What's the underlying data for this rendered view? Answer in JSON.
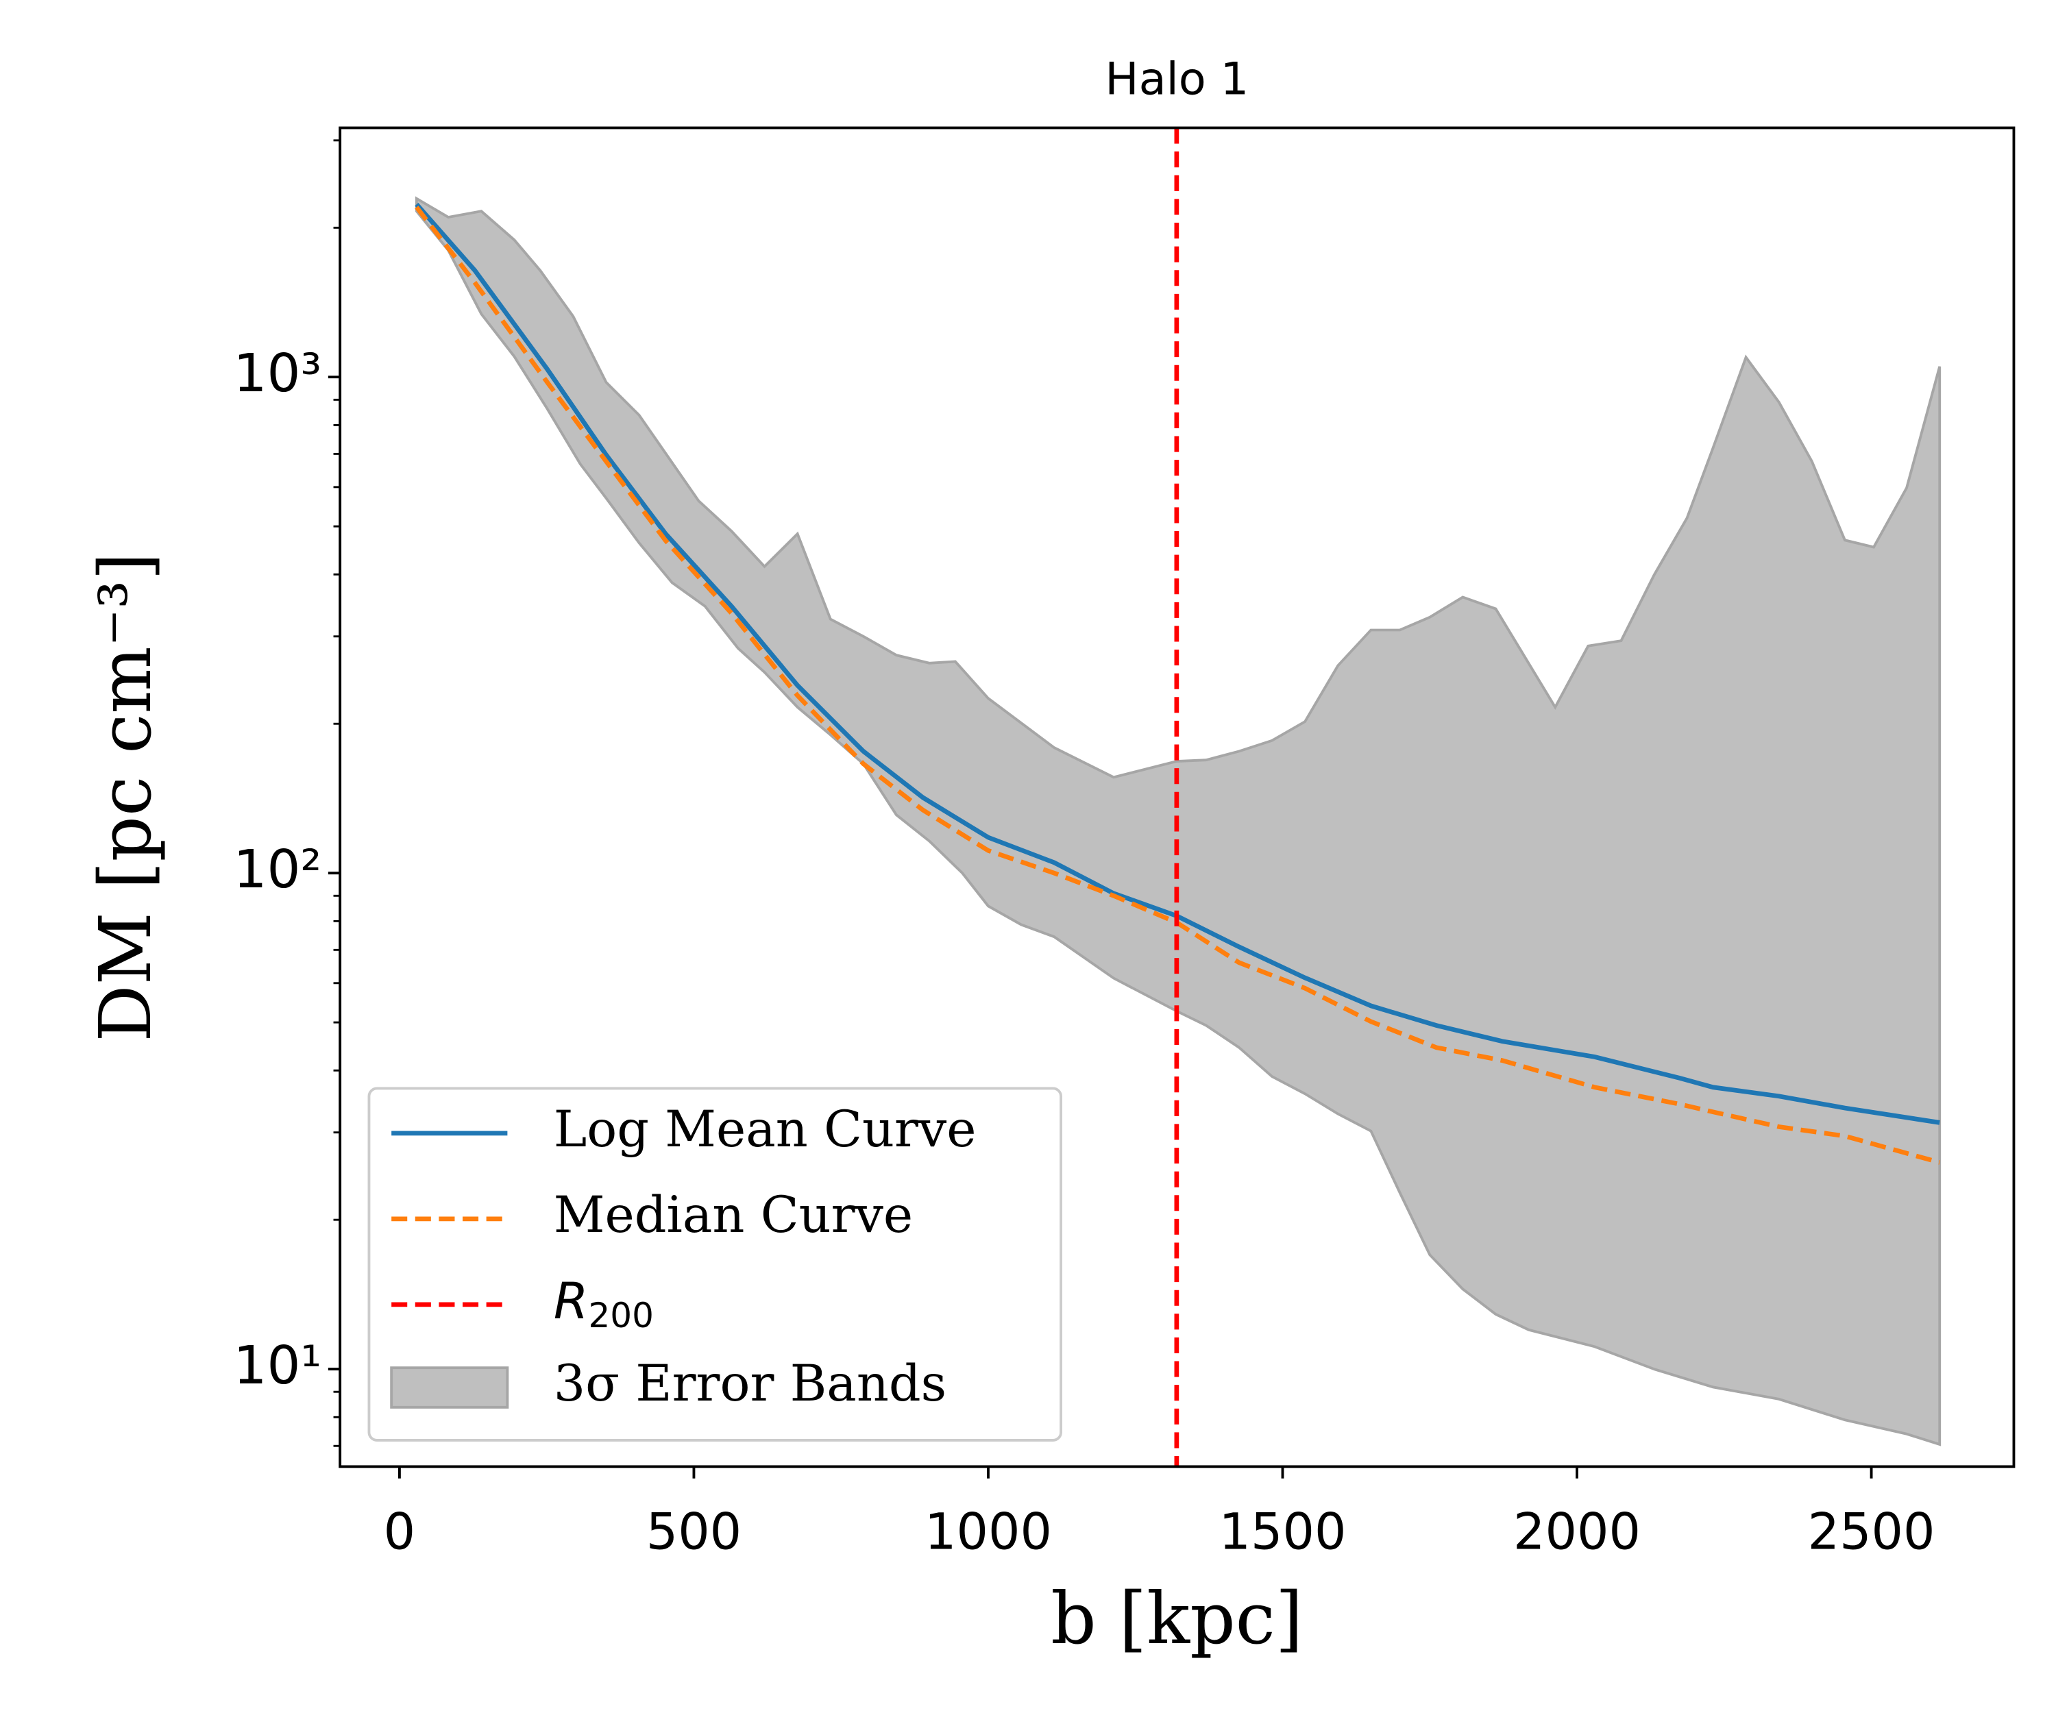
{
  "chart_data": {
    "type": "line",
    "title": "Halo 1",
    "x_label": "b [kpc]",
    "y_label": "DM [pc cm⁻³]",
    "y_log": true,
    "xlim": [
      -101,
      2742
    ],
    "ylim": [
      6.36,
      3180
    ],
    "xticks": [
      0,
      500,
      1000,
      1500,
      2000,
      2500
    ],
    "yticks": [
      {
        "value": 10,
        "label": "10¹"
      },
      {
        "value": 100,
        "label": "10²"
      },
      {
        "value": 1000,
        "label": "10³"
      }
    ],
    "yticks_minor": [
      7,
      8,
      9,
      20,
      30,
      40,
      50,
      60,
      70,
      80,
      90,
      200,
      300,
      400,
      500,
      600,
      700,
      800,
      900,
      2000,
      3000
    ],
    "legend": "lower left",
    "series": [
      {
        "name": "Log Mean Curve",
        "color": "#1f77b4",
        "style": "solid",
        "x": [
          29,
          128,
          251,
          351,
          452,
          564,
          676,
          788,
          889,
          1000,
          1112,
          1213,
          1320,
          1426,
          1538,
          1650,
          1761,
          1873,
          2030,
          2175,
          2231,
          2343,
          2455,
          2616
        ],
        "values": [
          2230,
          1640,
          1037,
          697,
          483,
          345,
          239,
          176,
          142,
          118,
          105,
          91,
          82,
          71,
          61.5,
          54,
          49.3,
          45.8,
          42.6,
          38.6,
          37,
          35.5,
          33.6,
          31.4
        ]
      },
      {
        "name": "Median Curve",
        "color": "#ff7f0e",
        "style": "dashed",
        "x": [
          29,
          128,
          251,
          351,
          452,
          564,
          676,
          788,
          889,
          1000,
          1112,
          1213,
          1320,
          1426,
          1538,
          1650,
          1761,
          1873,
          2030,
          2175,
          2231,
          2343,
          2455,
          2616
        ],
        "values": [
          2200,
          1550,
          976,
          676,
          468,
          334,
          228,
          166,
          134,
          111,
          100,
          90,
          79.5,
          66,
          58.6,
          50.2,
          44.5,
          41.9,
          37,
          34.2,
          33,
          30.8,
          29.5,
          26.1
        ]
      }
    ],
    "vline": {
      "name": "R",
      "name_sub": "200",
      "color": "#ff0000",
      "x": 1320
    },
    "band": {
      "name": "3σ Error Bands",
      "color": "#bfbfbf",
      "edge_color": "#a6a6a6",
      "x_upper": [
        29,
        83,
        139,
        195,
        239,
        295,
        351,
        407,
        508,
        564,
        620,
        676,
        732,
        788,
        844,
        900,
        944,
        1000,
        1112,
        1213,
        1320,
        1370,
        1426,
        1482,
        1538,
        1594,
        1650,
        1699,
        1750,
        1806,
        1862,
        1963,
        2019,
        2075,
        2131,
        2187,
        2231,
        2287,
        2343,
        2399,
        2455,
        2504,
        2560,
        2616
      ],
      "upper": [
        2290,
        2100,
        2160,
        1890,
        1640,
        1325,
        976,
        838,
        563,
        489,
        415,
        483,
        325,
        300,
        275,
        265,
        267,
        225,
        179,
        156,
        168,
        169,
        176,
        185,
        202,
        262,
        309,
        309,
        328,
        360,
        341,
        216,
        287,
        294,
        399,
        520,
        719,
        1096,
        890,
        676,
        469,
        454,
        598,
        1050
      ],
      "x_lower": [
        29,
        83,
        139,
        195,
        251,
        307,
        351,
        407,
        463,
        519,
        575,
        620,
        676,
        732,
        788,
        844,
        900,
        956,
        1000,
        1056,
        1112,
        1213,
        1320,
        1370,
        1426,
        1482,
        1538,
        1594,
        1650,
        1699,
        1750,
        1806,
        1862,
        1918,
        2030,
        2131,
        2231,
        2343,
        2455,
        2560,
        2616
      ],
      "lower": [
        2160,
        1800,
        1340,
        1100,
        863,
        668,
        570,
        463,
        385,
        345,
        284,
        254,
        216,
        190,
        166,
        131,
        116,
        100,
        85.8,
        78.7,
        74.4,
        61.4,
        52.7,
        49.3,
        44.5,
        38.9,
        35.9,
        32.7,
        30.2,
        22.7,
        17,
        14.5,
        12.9,
        12,
        11.1,
        10,
        9.2,
        8.7,
        7.9,
        7.4,
        7.05
      ]
    }
  }
}
